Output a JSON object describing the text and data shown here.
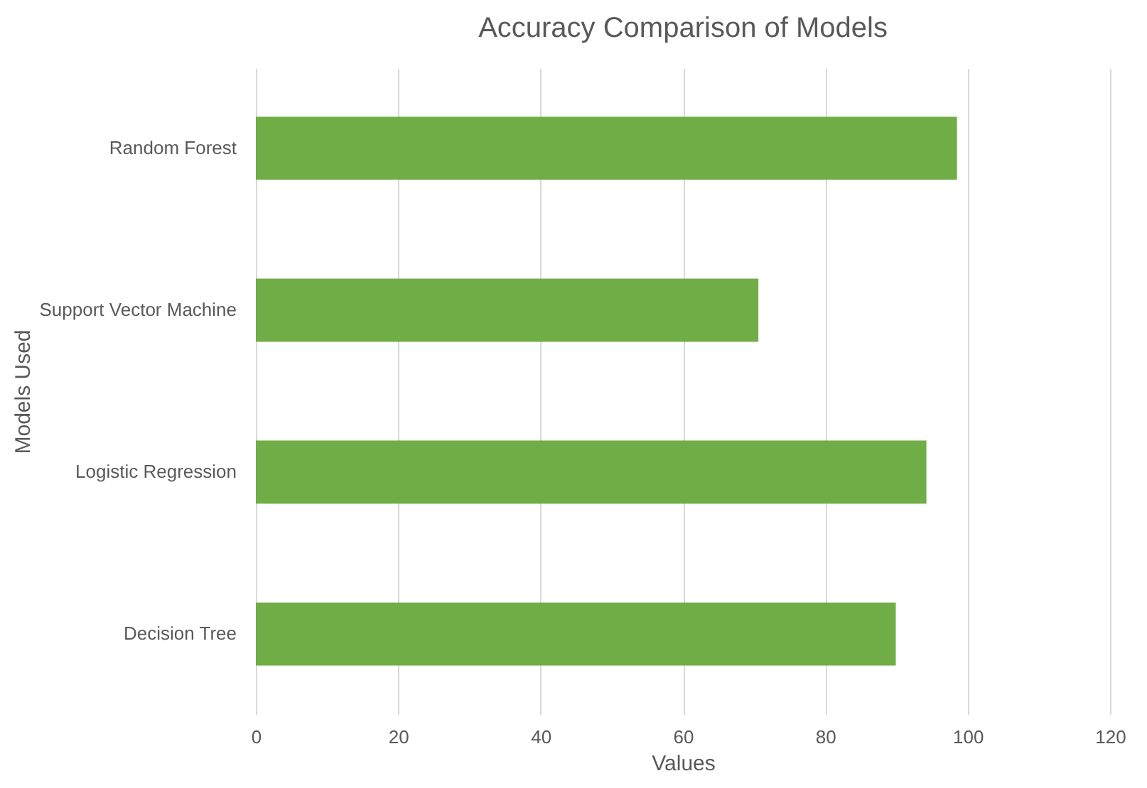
{
  "chart_data": {
    "type": "bar",
    "orientation": "horizontal",
    "title": "Accuracy Comparison of Models",
    "xlabel": "Values",
    "ylabel": "Models Used",
    "categories": [
      "Random Forest",
      "Support Vector Machine",
      "Logistic Regression",
      "Decision Tree"
    ],
    "values": [
      98.5,
      70.6,
      94.2,
      89.9
    ],
    "color": "#70ad47",
    "xlim": [
      0,
      120
    ],
    "xticks": [
      0,
      20,
      40,
      60,
      80,
      100,
      120
    ],
    "grid": "x"
  }
}
